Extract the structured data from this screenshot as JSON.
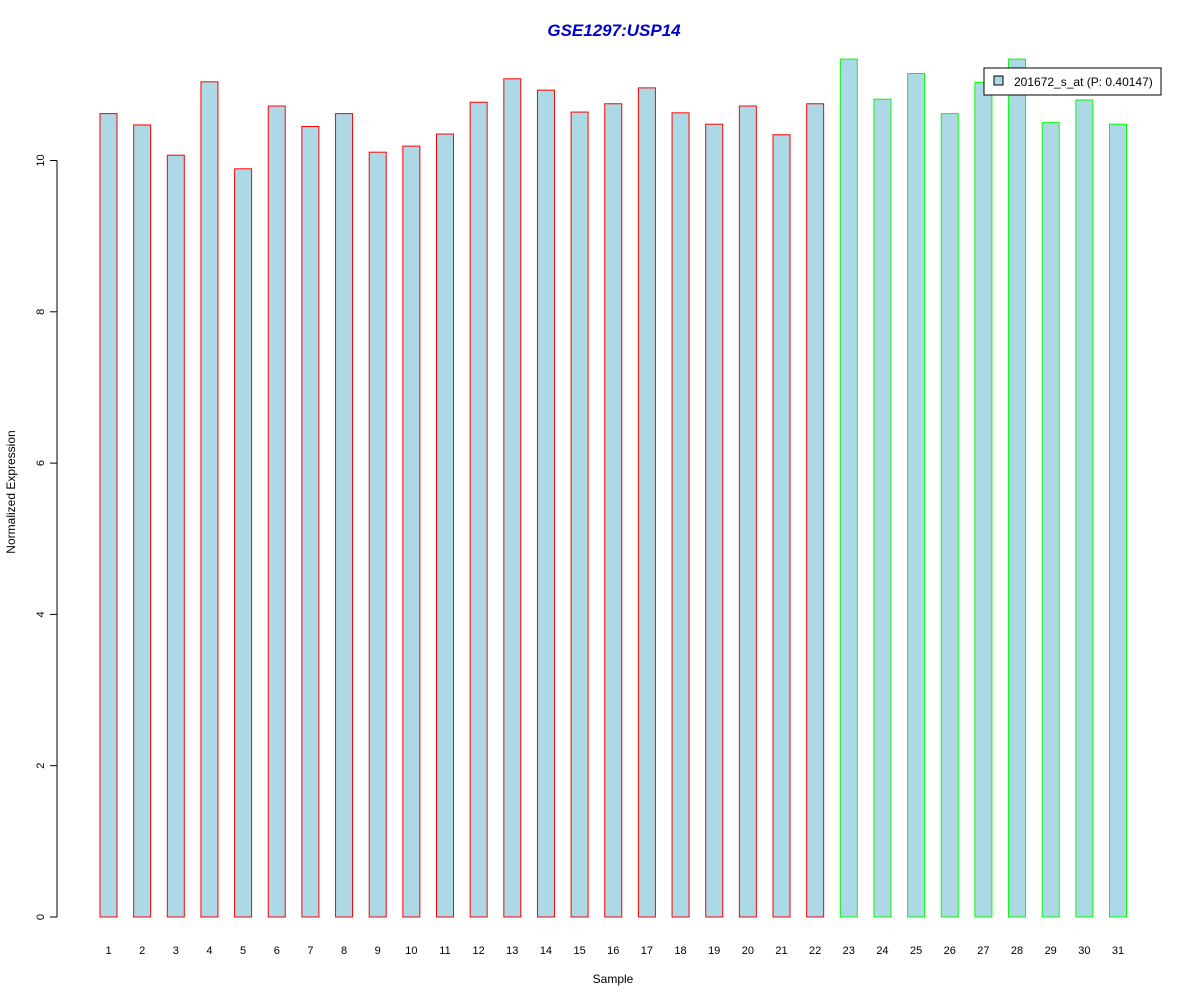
{
  "chart_data": {
    "type": "bar",
    "title": "GSE1297:USP14",
    "title_color": "#0000cc",
    "xlabel": "Sample",
    "ylabel": "Normalized Expression",
    "ylim": [
      0,
      11.5
    ],
    "yticks": [
      0,
      2,
      4,
      6,
      8,
      10
    ],
    "grid": false,
    "legend_position": "top-right",
    "categories": [
      "1",
      "2",
      "3",
      "4",
      "5",
      "6",
      "7",
      "8",
      "9",
      "10",
      "11",
      "12",
      "13",
      "14",
      "15",
      "16",
      "17",
      "18",
      "19",
      "20",
      "21",
      "22",
      "23",
      "24",
      "25",
      "26",
      "27",
      "28",
      "29",
      "30",
      "31"
    ],
    "series": [
      {
        "name": "201672_s_at (P: 0.40147)",
        "fill": "#add8e6",
        "values": [
          10.62,
          10.47,
          10.07,
          11.04,
          9.89,
          10.72,
          10.45,
          10.62,
          10.11,
          10.19,
          10.35,
          10.77,
          11.08,
          10.93,
          10.64,
          10.75,
          10.96,
          10.63,
          10.48,
          10.72,
          10.34,
          10.75,
          11.34,
          10.81,
          11.15,
          10.62,
          11.03,
          11.34,
          10.5,
          10.8,
          10.48
        ]
      }
    ],
    "bar_edge_colors": [
      "#ff0000",
      "#ff0000",
      "#ff0000",
      "#ff0000",
      "#ff0000",
      "#ff0000",
      "#ff0000",
      "#ff0000",
      "#ff0000",
      "#ff0000",
      "#ff0000",
      "#ff0000",
      "#ff0000",
      "#ff0000",
      "#ff0000",
      "#ff0000",
      "#ff0000",
      "#ff0000",
      "#ff0000",
      "#ff0000",
      "#ff0000",
      "#ff0000",
      "#00ff00",
      "#00ff00",
      "#00ff00",
      "#00ff00",
      "#00ff00",
      "#00ff00",
      "#00ff00",
      "#00ff00",
      "#00ff00"
    ]
  }
}
